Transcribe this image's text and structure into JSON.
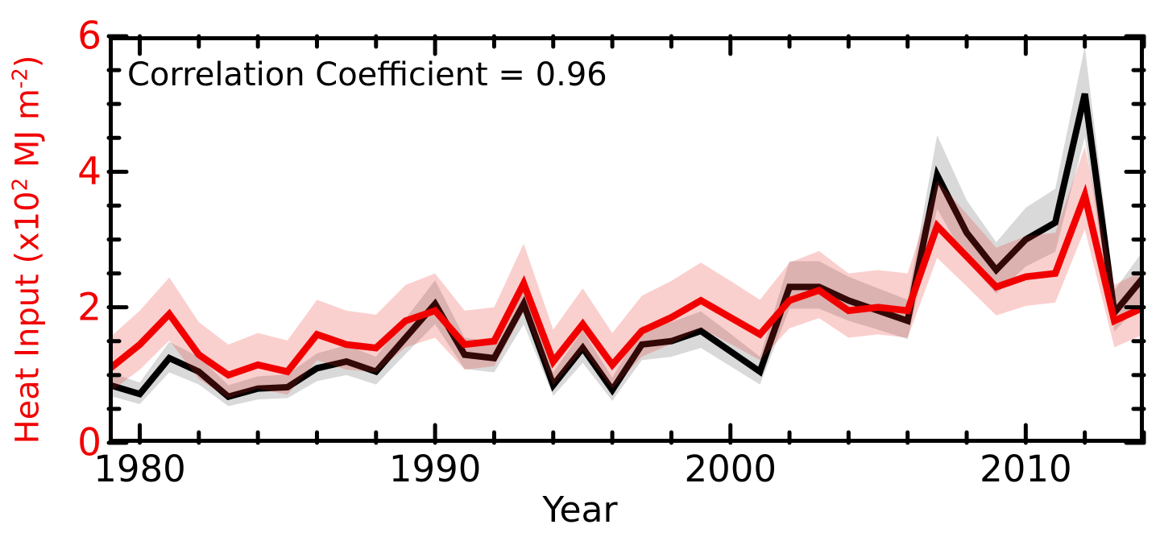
{
  "chart_data": {
    "type": "line",
    "title": "",
    "annotation": "Correlation Coefficient = 0.96",
    "xlabel": "Year",
    "ylabel": "Heat Input (x10^2 MJ m^-2)",
    "ylabel_parts": {
      "pre": "Heat Input (x10",
      "sup1": "2",
      "mid": " MJ m",
      "sup2": "-2",
      "post": ")"
    },
    "xlim": [
      1978.95,
      2014.0
    ],
    "ylim": [
      0,
      6
    ],
    "grid": false,
    "legend": "none",
    "x": [
      1979,
      1980,
      1981,
      1982,
      1983,
      1984,
      1985,
      1986,
      1987,
      1988,
      1989,
      1990,
      1991,
      1992,
      1993,
      1994,
      1995,
      1996,
      1997,
      1998,
      1999,
      2000,
      2001,
      2002,
      2003,
      2004,
      2005,
      2006,
      2007,
      2008,
      2009,
      2010,
      2011,
      2012,
      2013,
      2014
    ],
    "series": [
      {
        "name": "black",
        "color": "#000000",
        "band_color": "rgba(0,0,0,0.15)",
        "values": [
          0.85,
          0.72,
          1.25,
          1.05,
          0.68,
          0.8,
          0.82,
          1.1,
          1.2,
          1.05,
          1.55,
          2.05,
          1.3,
          1.25,
          2.05,
          0.85,
          1.4,
          0.78,
          1.45,
          1.5,
          1.65,
          1.35,
          1.05,
          2.3,
          2.3,
          2.1,
          1.95,
          1.8,
          3.95,
          3.1,
          2.55,
          3.0,
          3.25,
          5.15,
          1.92,
          2.45
        ],
        "band_upper": [
          1.04,
          0.89,
          1.49,
          1.27,
          0.85,
          0.98,
          1.01,
          1.32,
          1.44,
          1.27,
          1.83,
          2.4,
          1.55,
          1.49,
          2.4,
          1.04,
          1.66,
          0.96,
          1.72,
          1.78,
          1.94,
          1.61,
          1.27,
          2.68,
          2.68,
          2.45,
          2.28,
          2.11,
          4.54,
          3.58,
          2.96,
          3.47,
          3.75,
          5.85,
          2.25,
          2.85
        ],
        "band_lower": [
          0.69,
          0.57,
          1.04,
          0.86,
          0.54,
          0.64,
          0.66,
          0.91,
          1.0,
          0.86,
          1.31,
          1.75,
          1.09,
          1.04,
          1.75,
          0.69,
          1.18,
          0.62,
          1.22,
          1.27,
          1.4,
          1.13,
          0.86,
          1.98,
          1.98,
          1.8,
          1.67,
          1.53,
          3.45,
          2.69,
          2.2,
          2.6,
          2.82,
          4.51,
          1.64,
          2.11
        ]
      },
      {
        "name": "red",
        "color": "#f20000",
        "band_color": "rgba(230,40,30,0.22)",
        "values": [
          1.1,
          1.45,
          1.9,
          1.3,
          1.0,
          1.15,
          1.05,
          1.6,
          1.45,
          1.4,
          1.8,
          1.95,
          1.45,
          1.5,
          2.35,
          1.2,
          1.75,
          1.15,
          1.65,
          1.85,
          2.1,
          1.85,
          1.6,
          2.1,
          2.25,
          1.95,
          2.0,
          1.95,
          3.2,
          2.75,
          2.3,
          2.45,
          2.5,
          3.65,
          1.8,
          2.0
        ],
        "band_upper": [
          1.56,
          1.95,
          2.44,
          1.78,
          1.45,
          1.62,
          1.51,
          2.11,
          1.95,
          1.89,
          2.33,
          2.5,
          1.95,
          2.0,
          2.94,
          1.67,
          2.28,
          1.62,
          2.17,
          2.39,
          2.66,
          2.39,
          2.11,
          2.66,
          2.83,
          2.5,
          2.55,
          2.5,
          3.87,
          3.38,
          2.88,
          3.05,
          3.1,
          4.37,
          2.33,
          2.55
        ],
        "band_lower": [
          0.75,
          1.08,
          1.51,
          0.94,
          0.66,
          0.8,
          0.71,
          1.22,
          1.08,
          1.04,
          1.41,
          1.55,
          1.08,
          1.13,
          1.93,
          0.85,
          1.37,
          0.8,
          1.27,
          1.46,
          1.69,
          1.46,
          1.22,
          1.69,
          1.84,
          1.55,
          1.6,
          1.55,
          2.73,
          2.31,
          1.88,
          2.02,
          2.07,
          3.15,
          1.41,
          1.6
        ]
      }
    ],
    "x_ticks": {
      "start": 1980,
      "step": 2,
      "end": 2014,
      "major_every": 10
    },
    "y_ticks": {
      "start": 0,
      "step": 0.5,
      "end": 6,
      "major_every": 2
    },
    "x_tick_labels": [
      {
        "value": 1980,
        "label": "1980"
      },
      {
        "value": 1990,
        "label": "1990"
      },
      {
        "value": 2000,
        "label": "2000"
      },
      {
        "value": 2010,
        "label": "2010"
      }
    ],
    "y_tick_labels": [
      {
        "value": 0,
        "label": "0"
      },
      {
        "value": 2,
        "label": "2"
      },
      {
        "value": 4,
        "label": "4"
      },
      {
        "value": 6,
        "label": "6"
      }
    ],
    "axis_color": "#000000",
    "y_axis_text_color": "#f20000",
    "x_axis_text_color": "#000000"
  }
}
